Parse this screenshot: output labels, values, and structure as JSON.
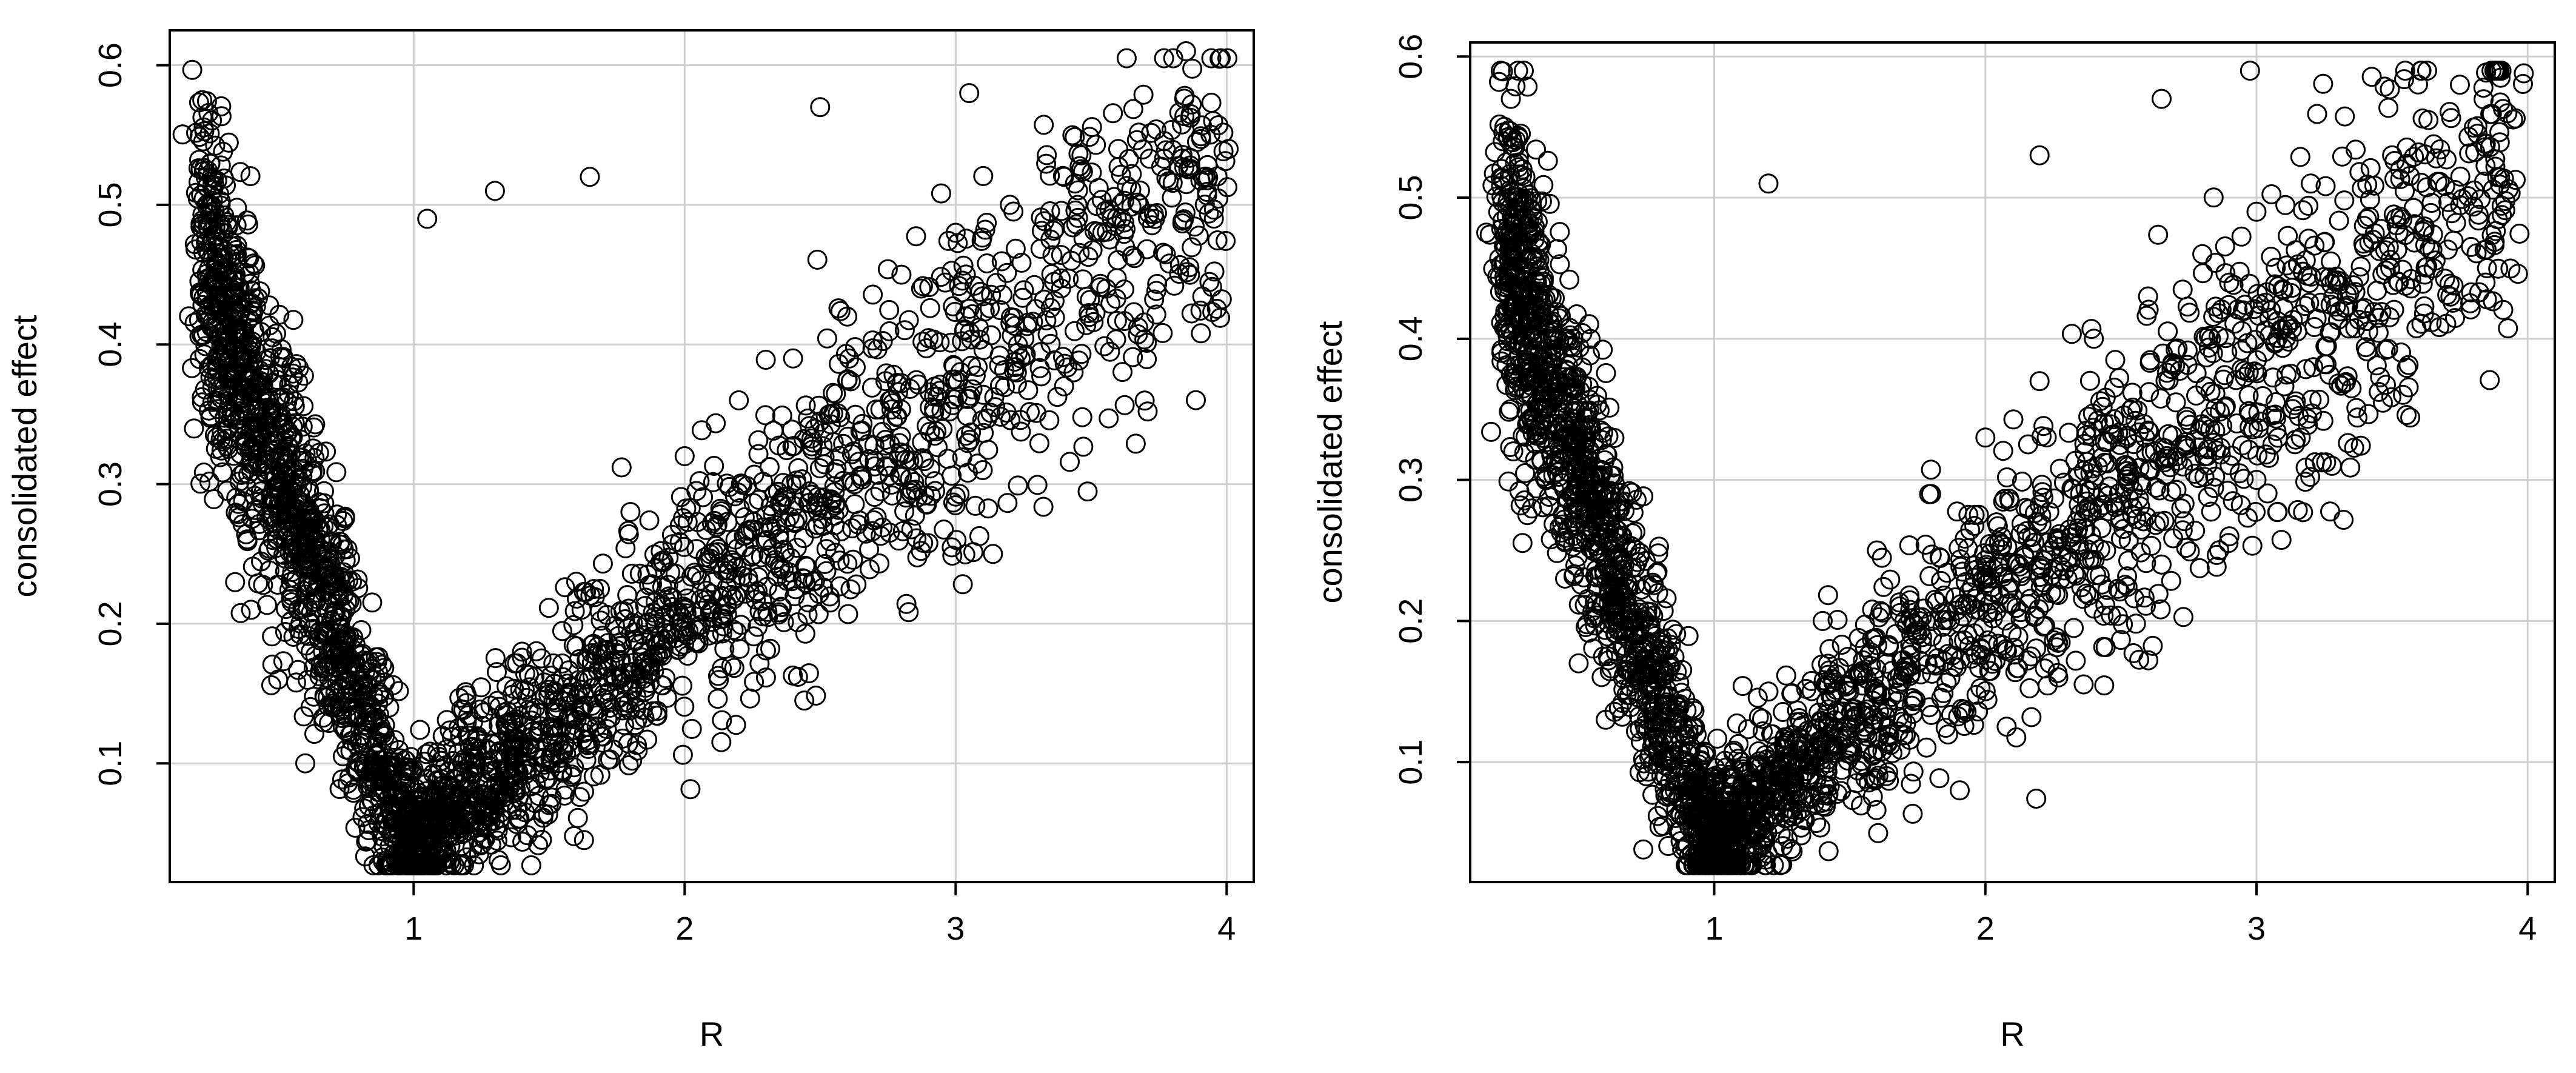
{
  "chart_data": [
    {
      "type": "scatter",
      "xlabel": "R",
      "ylabel": "consolidated effect",
      "xlim": [
        0.1,
        4.1
      ],
      "ylim": [
        0.015,
        0.625
      ],
      "xticks": [
        "1",
        "2",
        "3",
        "4"
      ],
      "yticks": [
        "0.1",
        "0.2",
        "0.3",
        "0.4",
        "0.5",
        "0.6"
      ],
      "grid": true,
      "marker": "open-circle",
      "color": "#000000",
      "points": [
        [
          0.22,
          0.575
        ],
        [
          0.25,
          0.5
        ],
        [
          0.27,
          0.46
        ],
        [
          0.3,
          0.42
        ],
        [
          0.34,
          0.38
        ],
        [
          0.38,
          0.34
        ],
        [
          0.42,
          0.3
        ],
        [
          0.48,
          0.26
        ],
        [
          0.55,
          0.22
        ],
        [
          0.62,
          0.18
        ],
        [
          0.7,
          0.14
        ],
        [
          0.8,
          0.1
        ],
        [
          0.9,
          0.06
        ],
        [
          1.0,
          0.03
        ],
        [
          1.1,
          0.08
        ],
        [
          1.2,
          0.12
        ],
        [
          1.4,
          0.18
        ],
        [
          1.6,
          0.23
        ],
        [
          1.8,
          0.28
        ],
        [
          2.0,
          0.32
        ],
        [
          2.2,
          0.36
        ],
        [
          2.4,
          0.39
        ],
        [
          2.6,
          0.42
        ],
        [
          2.8,
          0.45
        ],
        [
          3.0,
          0.48
        ],
        [
          3.2,
          0.5
        ],
        [
          3.4,
          0.52
        ],
        [
          3.6,
          0.54
        ],
        [
          3.85,
          0.61
        ],
        [
          3.95,
          0.56
        ],
        [
          1.05,
          0.49
        ],
        [
          1.3,
          0.51
        ],
        [
          1.65,
          0.52
        ],
        [
          2.5,
          0.57
        ],
        [
          3.05,
          0.58
        ],
        [
          3.1,
          0.31
        ],
        [
          2.55,
          0.33
        ],
        [
          3.4,
          0.37
        ],
        [
          2.0,
          0.21
        ],
        [
          1.7,
          0.17
        ],
        [
          0.6,
          0.1
        ],
        [
          0.5,
          0.16
        ],
        [
          0.4,
          0.21
        ]
      ],
      "generated_trend": {
        "count": 3000,
        "left_branch": {
          "x_start": 0.22,
          "y_start": 0.47,
          "x_end": 0.98,
          "y_end": 0.04
        },
        "right_branch": {
          "x_start": 0.98,
          "y_start": 0.04,
          "x_end": 4.0,
          "y_end": 0.53
        }
      }
    },
    {
      "type": "scatter",
      "xlabel": "R",
      "ylabel": "consolidated effect",
      "xlim": [
        0.1,
        4.1
      ],
      "ylim": [
        0.015,
        0.61
      ],
      "xticks": [
        "1",
        "2",
        "3",
        "4"
      ],
      "yticks": [
        "0.1",
        "0.2",
        "0.3",
        "0.4",
        "0.5",
        "0.6"
      ],
      "grid": true,
      "marker": "open-circle",
      "color": "#000000",
      "points": [
        [
          0.25,
          0.57
        ],
        [
          0.22,
          0.54
        ],
        [
          0.27,
          0.5
        ],
        [
          0.3,
          0.46
        ],
        [
          0.34,
          0.42
        ],
        [
          0.38,
          0.38
        ],
        [
          0.44,
          0.34
        ],
        [
          0.5,
          0.3
        ],
        [
          0.58,
          0.26
        ],
        [
          0.66,
          0.22
        ],
        [
          0.74,
          0.18
        ],
        [
          0.82,
          0.14
        ],
        [
          0.9,
          0.08
        ],
        [
          0.98,
          0.03
        ],
        [
          1.1,
          0.1
        ],
        [
          1.2,
          0.15
        ],
        [
          1.4,
          0.2
        ],
        [
          1.6,
          0.25
        ],
        [
          1.8,
          0.29
        ],
        [
          2.0,
          0.33
        ],
        [
          2.2,
          0.37
        ],
        [
          2.4,
          0.4
        ],
        [
          2.6,
          0.43
        ],
        [
          2.8,
          0.46
        ],
        [
          3.0,
          0.49
        ],
        [
          3.2,
          0.51
        ],
        [
          3.5,
          0.53
        ],
        [
          3.75,
          0.58
        ],
        [
          3.9,
          0.585
        ],
        [
          3.85,
          0.45
        ],
        [
          2.65,
          0.57
        ],
        [
          2.2,
          0.53
        ],
        [
          1.2,
          0.51
        ],
        [
          0.28,
          0.525
        ],
        [
          2.65,
          0.24
        ],
        [
          2.9,
          0.26
        ],
        [
          3.0,
          0.3
        ],
        [
          1.75,
          0.19
        ],
        [
          0.6,
          0.13
        ],
        [
          0.5,
          0.17
        ],
        [
          0.75,
          0.09
        ],
        [
          0.45,
          0.23
        ]
      ],
      "generated_trend": {
        "count": 3000,
        "left_branch": {
          "x_start": 0.22,
          "y_start": 0.47,
          "x_end": 0.98,
          "y_end": 0.04
        },
        "right_branch": {
          "x_start": 0.98,
          "y_start": 0.04,
          "x_end": 3.95,
          "y_end": 0.53
        }
      }
    }
  ]
}
